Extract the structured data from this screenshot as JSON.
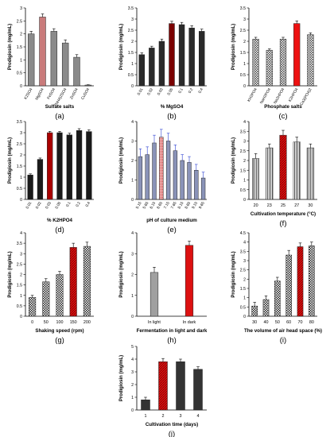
{
  "chart_data": [
    {
      "type": "bar",
      "panel_label": "(a)",
      "ylabel": "Prodigiosin (mg/mL)",
      "xlabel": "Sulfate salts",
      "yticks": [
        0,
        0.5,
        1,
        1.5,
        2,
        2.5,
        3
      ],
      "ylim": [
        0,
        3
      ],
      "categories": [
        "K2SO4",
        "MgSO4",
        "FeSO4",
        "(NH4)2SO4",
        "ZnSO4",
        "CuSO4"
      ],
      "values": [
        2.0,
        2.65,
        2.1,
        1.65,
        1.1,
        0.03
      ],
      "errors": [
        0.1,
        0.12,
        0.1,
        0.12,
        0.1,
        0.01
      ],
      "highlight_index": 1,
      "highlight_color": "#c97b7b"
    },
    {
      "type": "bar",
      "panel_label": "(b)",
      "ylabel": "Prodigiosin (mg/mL)",
      "xlabel": "% MgSO4",
      "yticks": [
        0,
        0.5,
        1,
        1.5,
        2,
        2.5,
        3,
        3.5
      ],
      "ylim": [
        0,
        3.5
      ],
      "categories": [
        "0.01",
        "0.02",
        "0.03",
        "0.05",
        "0.1",
        "0.2",
        "0.4"
      ],
      "values": [
        1.4,
        1.7,
        2.0,
        2.8,
        2.75,
        2.6,
        2.45
      ],
      "errors": [
        0.08,
        0.08,
        0.1,
        0.1,
        0.1,
        0.1,
        0.1
      ],
      "highlight_index": 3,
      "highlight_color": "#7a0000"
    },
    {
      "type": "bar",
      "panel_label": "(c)",
      "ylabel": "Prodigiosin (mg/mL)",
      "xlabel": "Phosphate salts",
      "yticks": [
        0,
        0.5,
        1,
        1.5,
        2,
        2.5,
        3,
        3.5
      ],
      "ylim": [
        0,
        3.5
      ],
      "categories": [
        "KH2PO4",
        "NaH2PO4",
        "Na2HPO4",
        "K2HPO4",
        "Ca3(PO4)2"
      ],
      "values": [
        2.1,
        1.6,
        2.1,
        2.8,
        2.3
      ],
      "errors": [
        0.08,
        0.06,
        0.08,
        0.12,
        0.08
      ],
      "highlight_index": 3,
      "highlight_color": "#ee1111"
    },
    {
      "type": "bar",
      "panel_label": "(d)",
      "ylabel": "Prodigiosin (mg/mL)",
      "xlabel": "% K2HPO4",
      "yticks": [
        0,
        0.5,
        1,
        1.5,
        2,
        2.5,
        3,
        3.5
      ],
      "ylim": [
        0,
        3.5
      ],
      "categories": [
        "0.01",
        "0.02",
        "0.03",
        "0.05",
        "0.1",
        "0.2",
        "0.4"
      ],
      "values": [
        1.1,
        1.8,
        3.0,
        3.0,
        2.9,
        3.1,
        3.05
      ],
      "errors": [
        0.05,
        0.06,
        0.06,
        0.06,
        0.08,
        0.08,
        0.08
      ],
      "highlight_index": 2,
      "highlight_color": "#aa0000"
    },
    {
      "type": "bar",
      "panel_label": "(e)",
      "ylabel": "Prodigiosin (mg/mL)",
      "xlabel": "pH of culture medium",
      "yticks": [
        0,
        1,
        2,
        3,
        4
      ],
      "ylim": [
        0,
        4
      ],
      "categories": [
        "5.15",
        "5.65",
        "6.15",
        "6.65",
        "7.15",
        "7.65",
        "8.15",
        "8.65",
        "9.15",
        "9.65"
      ],
      "values": [
        2.2,
        2.3,
        2.9,
        3.2,
        3.0,
        2.5,
        2.0,
        1.9,
        1.5,
        1.1
      ],
      "errors": [
        0.4,
        0.4,
        0.4,
        0.4,
        0.4,
        0.3,
        0.3,
        0.3,
        0.3,
        0.3
      ],
      "highlight_index": 3,
      "highlight_color": "#e09090"
    },
    {
      "type": "bar",
      "panel_label": "(f)",
      "ylabel": "Prodigiosin (mg/mL)",
      "xlabel": "Cultivation temperature (°C)",
      "yticks": [
        0,
        0.5,
        1,
        1.5,
        2,
        2.5,
        3,
        3.5,
        4
      ],
      "ylim": [
        0,
        4
      ],
      "categories": [
        "20",
        "23",
        "25",
        "27",
        "30"
      ],
      "values": [
        2.1,
        2.65,
        3.3,
        2.95,
        2.65
      ],
      "errors": [
        0.25,
        0.2,
        0.25,
        0.25,
        0.2
      ],
      "highlight_index": 2,
      "highlight_color": "#bb2222"
    },
    {
      "type": "bar",
      "panel_label": "(g)",
      "ylabel": "Prodigiosin (mg/mL)",
      "xlabel": "Shaking speed (rpm)",
      "yticks": [
        0,
        0.5,
        1,
        1.5,
        2,
        2.5,
        3,
        3.5,
        4
      ],
      "ylim": [
        0,
        4
      ],
      "categories": [
        "0",
        "50",
        "100",
        "150",
        "200"
      ],
      "values": [
        0.9,
        1.65,
        2.0,
        3.3,
        3.35
      ],
      "errors": [
        0.1,
        0.15,
        0.15,
        0.2,
        0.2
      ],
      "highlight_index": 3,
      "highlight_color": "#dd1111"
    },
    {
      "type": "bar",
      "panel_label": "(h)",
      "ylabel": "Prodigiosin (mg/mL)",
      "xlabel": "Fermentation in light and dark",
      "yticks": [
        0,
        1,
        2,
        3,
        4
      ],
      "ylim": [
        0,
        4
      ],
      "categories": [
        "In light",
        "In dark"
      ],
      "values": [
        2.1,
        3.4
      ],
      "errors": [
        0.25,
        0.2
      ],
      "highlight_index": 1,
      "highlight_color": "#dd1111"
    },
    {
      "type": "bar",
      "panel_label": "(i)",
      "ylabel": "Prodigiosin (mg/mL)",
      "xlabel": "The volume of air head space (%)",
      "yticks": [
        0,
        0.5,
        1,
        1.5,
        2,
        2.5,
        3,
        3.5,
        4,
        4.5
      ],
      "ylim": [
        0,
        4.5
      ],
      "categories": [
        "30",
        "40",
        "50",
        "60",
        "70",
        "80"
      ],
      "values": [
        0.55,
        0.9,
        1.9,
        3.3,
        3.75,
        3.8
      ],
      "errors": [
        0.2,
        0.2,
        0.2,
        0.25,
        0.2,
        0.2
      ],
      "highlight_index": 4,
      "highlight_color": "#dd1111"
    },
    {
      "type": "bar",
      "panel_label": "(j)",
      "ylabel": "Prodigiosin (mg/mL)",
      "xlabel": "Cultivation time (days)",
      "yticks": [
        0,
        1,
        2,
        3,
        4,
        5
      ],
      "ylim": [
        0,
        5
      ],
      "categories": [
        "1",
        "2",
        "3",
        "4"
      ],
      "values": [
        0.8,
        3.8,
        3.8,
        3.2
      ],
      "errors": [
        0.2,
        0.25,
        0.2,
        0.2
      ],
      "highlight_index": 1,
      "highlight_color": "#dd1111"
    }
  ]
}
